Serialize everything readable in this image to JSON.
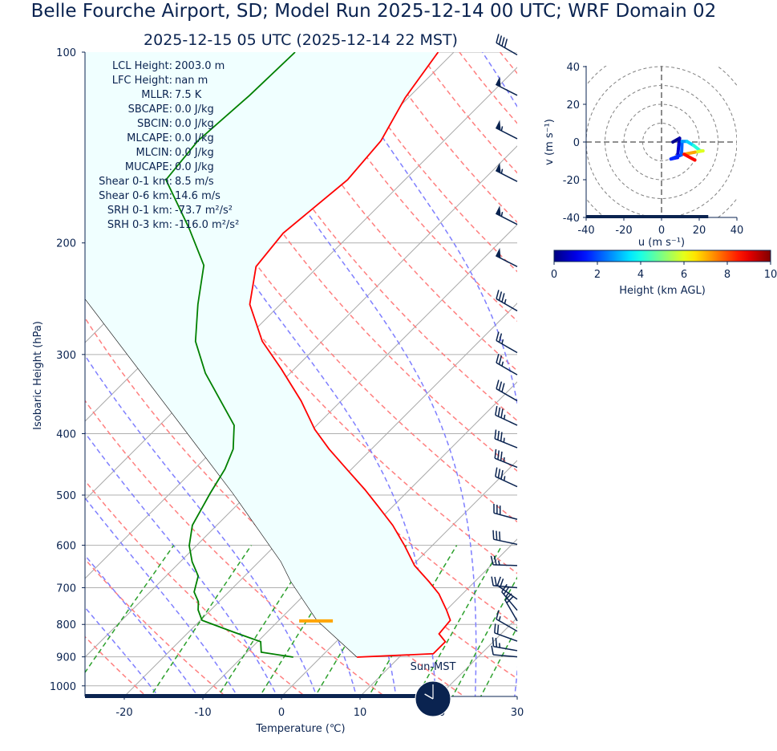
{
  "title": "Belle Fourche Airport, SD; Model Run 2025-12-14 00 UTC; WRF Domain 02",
  "subtitle": "2025-12-15 05 UTC  (2025-12-14 22 MST)",
  "clock": {
    "label": "Sun-MST",
    "hour": 22,
    "minute": 0,
    "icon": "clock-icon"
  },
  "timeline": {
    "progress": 0.81
  },
  "colors": {
    "text": "#0a2350",
    "temperature": "#ff0000",
    "dewpoint": "#008000",
    "parcel": "#000000",
    "cin_shade": "#f0ffff",
    "lcl_marker": "#ffa500",
    "barbs": "#0a2350"
  },
  "chart_data": [
    {
      "type": "skewt",
      "xlabel": "Temperature (℃)",
      "ylabel": "Isobaric Height (hPa)",
      "xlim": [
        -25,
        30
      ],
      "ylim": [
        1040,
        100
      ],
      "y_scale": "log",
      "xticks": [
        -20,
        -10,
        0,
        10,
        20,
        30
      ],
      "yticks": [
        100,
        200,
        300,
        400,
        500,
        600,
        700,
        800,
        900,
        1000
      ],
      "grid": true,
      "temperature": {
        "p": [
          901,
          890,
          852,
          828,
          788,
          759,
          716,
          685,
          646,
          601,
          558,
          519,
          490,
          455,
          423,
          394,
          355,
          316,
          286,
          250,
          218,
          193,
          159,
          138,
          118,
          100
        ],
        "T": [
          4.6,
          13.9,
          13.9,
          12.1,
          11.8,
          10.0,
          7.0,
          4.2,
          0.3,
          -3.5,
          -7.6,
          -12.1,
          -15.7,
          -20.6,
          -25.4,
          -29.7,
          -35.1,
          -41.7,
          -47.6,
          -53.9,
          -57.9,
          -58.7,
          -57.3,
          -58.0,
          -60.4,
          -62.0
        ]
      },
      "dewpoint": {
        "p": [
          901,
          885,
          852,
          823,
          788,
          759,
          737,
          711,
          671,
          637,
          601,
          558,
          497,
          455,
          423,
          388,
          321,
          286,
          250,
          217,
          190,
          159,
          138,
          117,
          100
        ],
        "Td": [
          -3.5,
          -8.2,
          -9.6,
          -14.2,
          -19.8,
          -21.6,
          -22.6,
          -24.4,
          -25.9,
          -28.5,
          -30.9,
          -33.1,
          -34.9,
          -36.1,
          -37.6,
          -40.5,
          -50.8,
          -56.1,
          -60.5,
          -64.7,
          -71.2,
          -80.4,
          -81.3,
          -80.5,
          -80.2
        ]
      },
      "parcel": {
        "p": [
          901,
          788,
          685,
          637,
          497,
          394,
          245
        ],
        "T": [
          4.6,
          -5.2,
          -13.4,
          -17.2,
          -32.0,
          -46.3,
          -75.6
        ]
      },
      "lcl_pressure": 790,
      "wind_barbs": [
        {
          "p": 101,
          "speed_kt": 40,
          "dir_deg": 300
        },
        {
          "p": 117,
          "speed_kt": 50,
          "dir_deg": 297
        },
        {
          "p": 137,
          "speed_kt": 55,
          "dir_deg": 297
        },
        {
          "p": 160,
          "speed_kt": 55,
          "dir_deg": 297
        },
        {
          "p": 187,
          "speed_kt": 55,
          "dir_deg": 297
        },
        {
          "p": 218,
          "speed_kt": 50,
          "dir_deg": 297
        },
        {
          "p": 256,
          "speed_kt": 35,
          "dir_deg": 300
        },
        {
          "p": 298,
          "speed_kt": 25,
          "dir_deg": 300
        },
        {
          "p": 323,
          "speed_kt": 25,
          "dir_deg": 300
        },
        {
          "p": 355,
          "speed_kt": 30,
          "dir_deg": 300
        },
        {
          "p": 388,
          "speed_kt": 35,
          "dir_deg": 295
        },
        {
          "p": 421,
          "speed_kt": 35,
          "dir_deg": 292
        },
        {
          "p": 452,
          "speed_kt": 35,
          "dir_deg": 292
        },
        {
          "p": 485,
          "speed_kt": 35,
          "dir_deg": 295
        },
        {
          "p": 546,
          "speed_kt": 30,
          "dir_deg": 285
        },
        {
          "p": 598,
          "speed_kt": 30,
          "dir_deg": 282
        },
        {
          "p": 646,
          "speed_kt": 25,
          "dir_deg": 272
        },
        {
          "p": 700,
          "speed_kt": 20,
          "dir_deg": 275
        },
        {
          "p": 730,
          "speed_kt": 20,
          "dir_deg": 305
        },
        {
          "p": 760,
          "speed_kt": 25,
          "dir_deg": 320
        },
        {
          "p": 790,
          "speed_kt": 20,
          "dir_deg": 330
        },
        {
          "p": 820,
          "speed_kt": 15,
          "dir_deg": 300
        },
        {
          "p": 850,
          "speed_kt": 20,
          "dir_deg": 290
        },
        {
          "p": 880,
          "speed_kt": 25,
          "dir_deg": 280
        },
        {
          "p": 900,
          "speed_kt": 10,
          "dir_deg": 275
        }
      ],
      "indices": [
        {
          "label": "LCL Height:",
          "value": "2003.0 m"
        },
        {
          "label": "LFC Height:",
          "value": "nan m"
        },
        {
          "label": "MLLR:",
          "value": "7.5 K"
        },
        {
          "label": "SBCAPE:",
          "value": "0.0 J/kg"
        },
        {
          "label": "SBCIN:",
          "value": "0.0 J/kg"
        },
        {
          "label": "MLCAPE:",
          "value": "0.0 J/kg"
        },
        {
          "label": "MLCIN:",
          "value": "0.0 J/kg"
        },
        {
          "label": "MUCAPE:",
          "value": "0.0 J/kg"
        },
        {
          "label": "Shear 0-1 km:",
          "value": "8.5 m/s"
        },
        {
          "label": "Shear 0-6 km:",
          "value": "14.6 m/s"
        },
        {
          "label": "SRH 0-1 km:",
          "value": "-73.7 m²/s²"
        },
        {
          "label": "SRH 0-3 km:",
          "value": "-116.0 m²/s²"
        }
      ]
    },
    {
      "type": "hodograph",
      "xlabel": "u (m s⁻¹)",
      "ylabel": "v (m s⁻¹)",
      "xlim": [
        -40,
        40
      ],
      "ylim": [
        -40,
        40
      ],
      "xticks": [
        -40,
        -20,
        0,
        20,
        40
      ],
      "yticks": [
        -40,
        -20,
        0,
        20,
        40
      ],
      "rings": [
        10,
        20,
        30,
        40,
        50
      ],
      "points": [
        {
          "u": 6.0,
          "v": 0.0,
          "h": 0.0
        },
        {
          "u": 9.6,
          "v": 2.0,
          "h": 0.3
        },
        {
          "u": 9.2,
          "v": -1.1,
          "h": 0.6
        },
        {
          "u": 8.5,
          "v": -8.2,
          "h": 1.0
        },
        {
          "u": 5.0,
          "v": -9.0,
          "h": 1.4
        },
        {
          "u": 10.6,
          "v": -6.8,
          "h": 1.9
        },
        {
          "u": 10.9,
          "v": 0.3,
          "h": 2.5
        },
        {
          "u": 13.5,
          "v": 0.3,
          "h": 3.0
        },
        {
          "u": 17.0,
          "v": -1.8,
          "h": 3.6
        },
        {
          "u": 20.6,
          "v": -4.7,
          "h": 4.6
        },
        {
          "u": 22.0,
          "v": -4.7,
          "h": 5.4
        },
        {
          "u": 17.7,
          "v": -5.4,
          "h": 6.5
        },
        {
          "u": 12.0,
          "v": -6.5,
          "h": 7.8
        },
        {
          "u": 17.7,
          "v": -9.6,
          "h": 9.5
        }
      ],
      "colorbar": {
        "label": "Height (km AGL)",
        "range": [
          0,
          10
        ],
        "ticks": [
          0,
          2,
          4,
          6,
          8,
          10
        ],
        "colormap": "jet"
      }
    }
  ]
}
